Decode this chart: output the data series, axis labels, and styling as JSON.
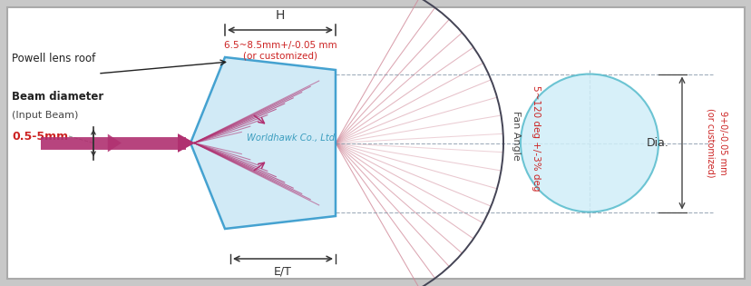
{
  "lens_color": "#cce8f5",
  "lens_edge_color": "#3399cc",
  "beam_color": "#b03070",
  "ray_color": "#cc7090",
  "fan_line_color": "#d08898",
  "circle_color": "#d0eef8",
  "circle_edge": "#55bbcc",
  "dim_color": "#888888",
  "red_text": "#cc2222",
  "dark_text": "#222222",
  "gray_text": "#555555",
  "arc_color": "#444455",
  "watermark": "Worldhawk Co., Ltd",
  "label_H": "H",
  "label_H_dim": "6.5~8.5mm+/-0.05 mm\n(or customized)",
  "label_beam": "Beam diameter",
  "label_beam2": "(Input Beam)",
  "label_beam_val": "0.5-5mm",
  "label_roof": "Powell lens roof",
  "label_ET": "E/T",
  "label_fan": "Fan Angle",
  "label_fan_val": "5~120 deg +/-3% deg",
  "label_dia": "Dia.",
  "label_dia_val": "9+0/-0.05 mm\n(or customized)"
}
